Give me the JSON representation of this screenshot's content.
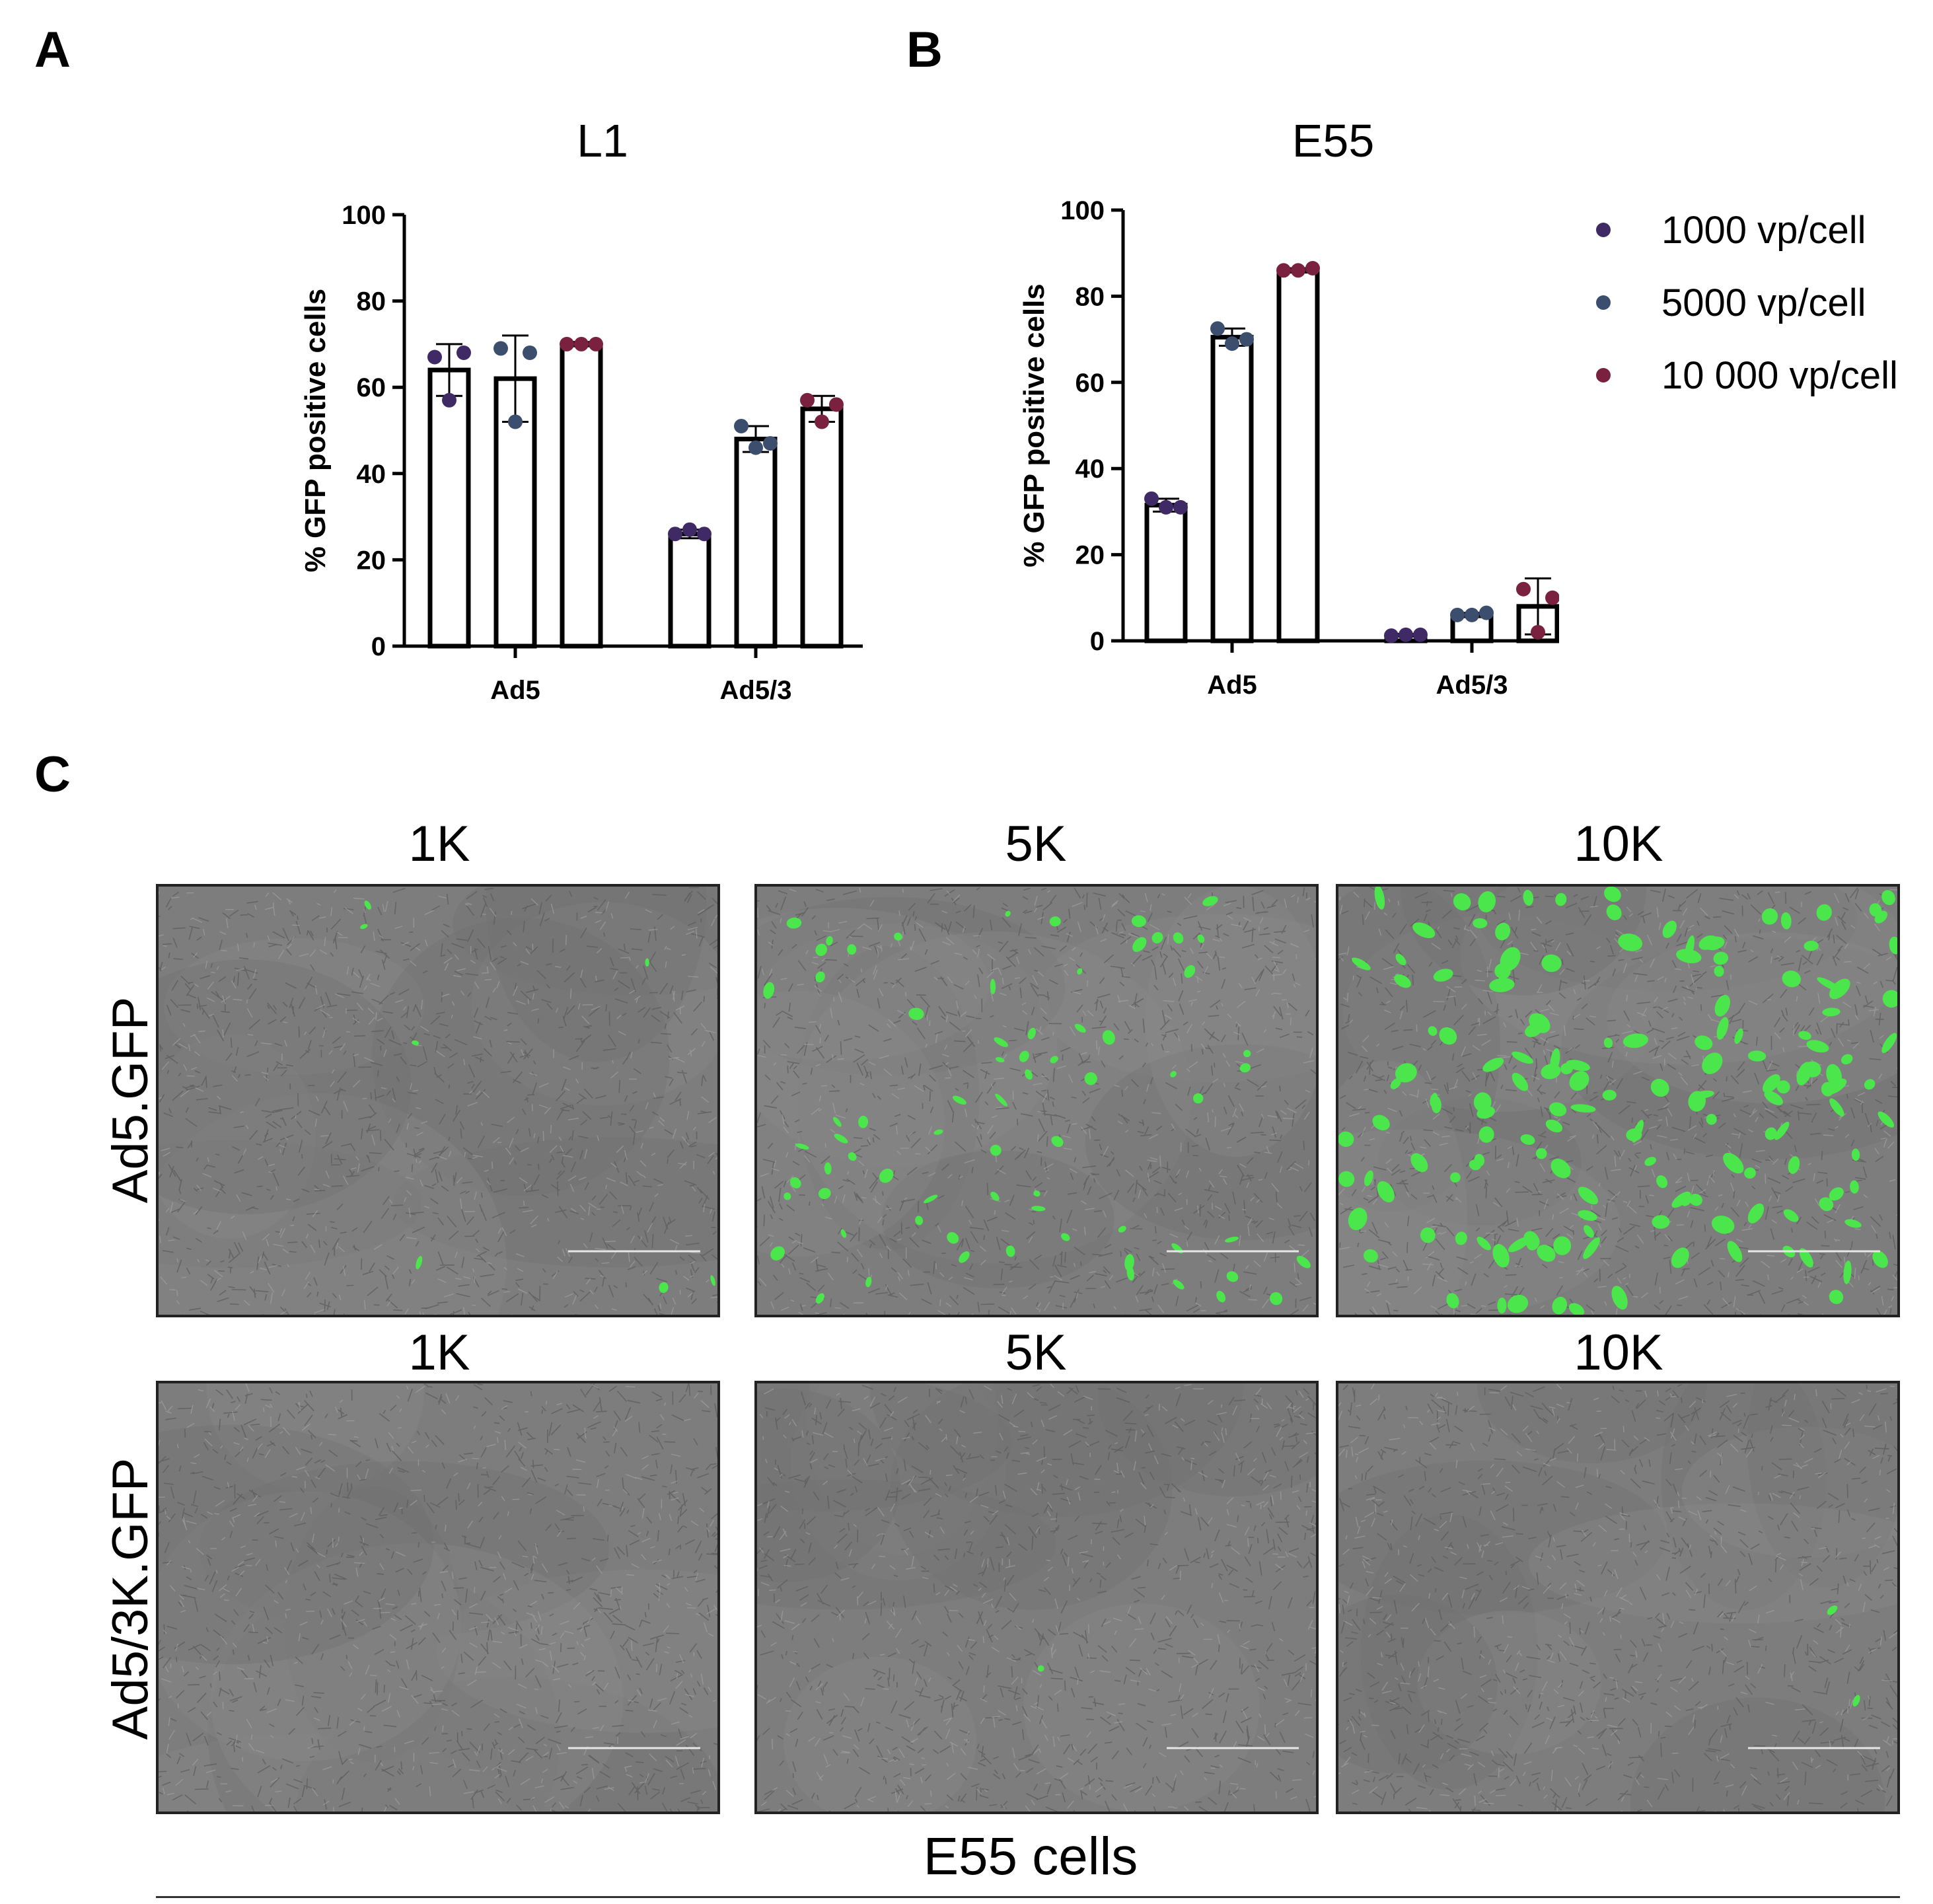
{
  "panels": {
    "a": "A",
    "b": "B",
    "c": "C"
  },
  "chart_data": [
    {
      "type": "bar",
      "title": "L1",
      "ylabel": "% GFP positive cells",
      "xlabel": "",
      "categories": [
        "Ad5",
        "Ad5/3"
      ],
      "ylim": [
        0,
        100
      ],
      "yticks": [
        0,
        20,
        40,
        60,
        80,
        100
      ],
      "series": [
        {
          "name": "1000 vp/cell",
          "values": [
            64,
            26
          ],
          "errors": [
            6,
            1
          ],
          "points": [
            [
              67,
              57,
              68
            ],
            [
              26,
              27,
              26
            ]
          ]
        },
        {
          "name": "5000 vp/cell",
          "values": [
            62,
            48
          ],
          "errors": [
            10,
            3
          ],
          "points": [
            [
              69,
              52,
              68
            ],
            [
              51,
              46,
              47
            ]
          ]
        },
        {
          "name": "10 000 vp/cell",
          "values": [
            70,
            55
          ],
          "errors": [
            0.5,
            3
          ],
          "points": [
            [
              70,
              70,
              70
            ],
            [
              57,
              52,
              56
            ]
          ]
        }
      ]
    },
    {
      "type": "bar",
      "title": "E55",
      "ylabel": "% GFP positive cells",
      "xlabel": "",
      "categories": [
        "Ad5",
        "Ad5/3"
      ],
      "ylim": [
        0,
        100
      ],
      "yticks": [
        0,
        20,
        40,
        60,
        80,
        100
      ],
      "legend_position": "right",
      "series": [
        {
          "name": "1000 vp/cell",
          "values": [
            31.5,
            1.3
          ],
          "errors": [
            1.5,
            0.3
          ],
          "points": [
            [
              33,
              31,
              31
            ],
            [
              1.2,
              1.4,
              1.4
            ]
          ]
        },
        {
          "name": "5000 vp/cell",
          "values": [
            70.5,
            6
          ],
          "errors": [
            2,
            0.5
          ],
          "points": [
            [
              72.5,
              69,
              70
            ],
            [
              6,
              6,
              6.5
            ]
          ]
        },
        {
          "name": "10 000 vp/cell",
          "values": [
            86,
            8
          ],
          "errors": [
            0.5,
            6.5
          ],
          "points": [
            [
              86,
              86,
              86.5
            ],
            [
              12,
              2,
              10
            ]
          ]
        }
      ]
    }
  ],
  "legend": [
    {
      "label": "1000 vp/cell",
      "color": "#3f2a66"
    },
    {
      "label": "5000 vp/cell",
      "color": "#3b4e6e"
    },
    {
      "label": "10 000 vp/cell",
      "color": "#7b2140"
    }
  ],
  "micrographs": {
    "columns": [
      "1K",
      "5K",
      "10K"
    ],
    "rows": [
      {
        "label": "Ad5.GFP",
        "titles": [
          "1K",
          "5K",
          "10K"
        ]
      },
      {
        "label": "Ad5/3K.GFP",
        "titles": [
          "1K",
          "5K",
          "10K"
        ]
      }
    ],
    "footer": "E55 cells",
    "green": "#4be64b"
  }
}
